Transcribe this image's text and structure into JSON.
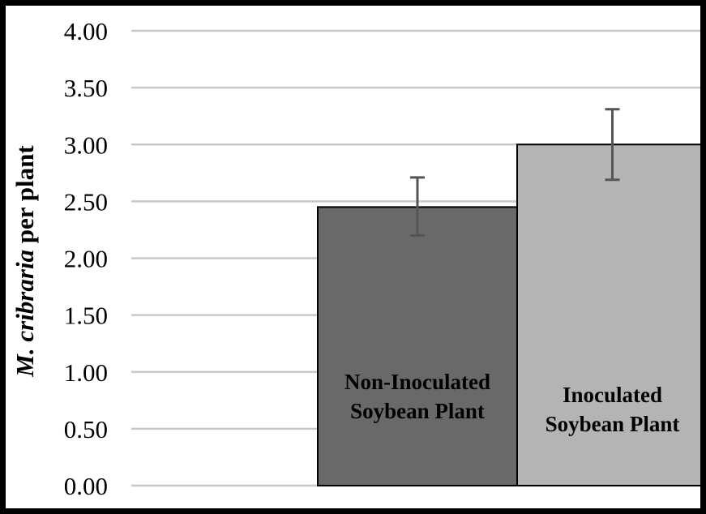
{
  "chart_data": {
    "type": "bar",
    "ylabel_italic": "M. cribraria",
    "ylabel_rest": " per plant",
    "ylim": [
      0,
      4
    ],
    "yticks": [
      "0.00",
      "0.50",
      "1.00",
      "1.50",
      "2.00",
      "2.50",
      "3.00",
      "3.50",
      "4.00"
    ],
    "grid": true,
    "bars": [
      {
        "label_lines": [
          "Non-Inoculated",
          "Soybean Plant"
        ],
        "value": 2.45,
        "error_low": 2.2,
        "error_high": 2.71,
        "color": "#696969"
      },
      {
        "label_lines": [
          "Inoculated",
          "Soybean Plant"
        ],
        "value": 3.0,
        "error_low": 2.69,
        "error_high": 3.31,
        "color": "#b4b4b4"
      }
    ]
  }
}
